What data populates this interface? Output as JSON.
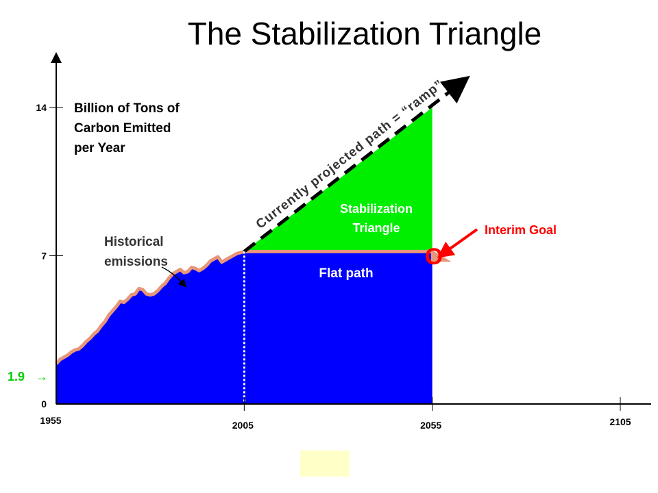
{
  "title": "The Stabilization Triangle",
  "chart_data": {
    "type": "area",
    "title": "The Stabilization Triangle",
    "ylabel": "Billion of Tons of Carbon Emitted per Year",
    "ylabel_lines": [
      "Billion of Tons of",
      "Carbon Emitted",
      "per Year"
    ],
    "xlim": [
      1955,
      2105
    ],
    "ylim": [
      0,
      14
    ],
    "x_ticks": [
      "1955",
      "2005",
      "2055",
      "2105"
    ],
    "y_ticks": [
      "0",
      "7",
      "14"
    ],
    "historical_series": {
      "name": "Historical emissions",
      "x": [
        1955,
        1956,
        1957,
        1958,
        1959,
        1960,
        1961,
        1962,
        1963,
        1964,
        1965,
        1966,
        1967,
        1968,
        1969,
        1970,
        1971,
        1972,
        1973,
        1974,
        1975,
        1976,
        1977,
        1978,
        1979,
        1980,
        1981,
        1982,
        1983,
        1984,
        1985,
        1986,
        1987,
        1988,
        1989,
        1990,
        1991,
        1992,
        1993,
        1994,
        1995,
        1996,
        1997,
        1998,
        1999,
        2000,
        2001,
        2002,
        2003,
        2004,
        2005
      ],
      "y": [
        1.9,
        2.1,
        2.2,
        2.3,
        2.45,
        2.55,
        2.6,
        2.75,
        2.95,
        3.1,
        3.3,
        3.45,
        3.7,
        3.9,
        4.2,
        4.4,
        4.6,
        4.85,
        4.8,
        4.95,
        5.15,
        5.2,
        5.45,
        5.4,
        5.2,
        5.15,
        5.2,
        5.35,
        5.55,
        5.7,
        5.95,
        6.15,
        6.25,
        6.35,
        6.2,
        6.25,
        6.45,
        6.4,
        6.3,
        6.4,
        6.55,
        6.75,
        6.85,
        6.95,
        6.7,
        6.8,
        6.9,
        7.0,
        7.1,
        7.15,
        7.2
      ]
    },
    "ramp": {
      "name": "Currently projected path = “ramp”",
      "x": [
        2005,
        2060
      ],
      "y": [
        7.2,
        14.8
      ]
    },
    "triangle": {
      "name": "Stabilization Triangle",
      "x": [
        2005,
        2055,
        2055
      ],
      "y": [
        7.2,
        7.2,
        14.0
      ]
    },
    "flat_path": {
      "name": "Flat path",
      "x": [
        2005,
        2055
      ],
      "y": [
        7.2,
        7.2
      ]
    },
    "markers": {
      "divider_year": 2005
    },
    "annotations": {
      "historical": [
        "Historical",
        "emissions"
      ],
      "stabilization": [
        "Stabilization",
        "Triangle"
      ],
      "flat": "Flat path",
      "ramp": "Currently projected path = “ramp”",
      "interim_goal": "Interim Goal",
      "goal_marker": "O",
      "start_value": "1.9 ",
      "start_arrow": "→"
    },
    "colors": {
      "historical_fill": "#0000ff",
      "flat_fill": "#0000ff",
      "triangle_fill": "#00ee00",
      "outline": "#e8967a",
      "ramp": "#000000",
      "green_text": "#00cc00",
      "red_text": "#ff0000",
      "white_text": "#ffffff",
      "dark_text": "#333333",
      "note_bg": "#ffffc8"
    }
  }
}
